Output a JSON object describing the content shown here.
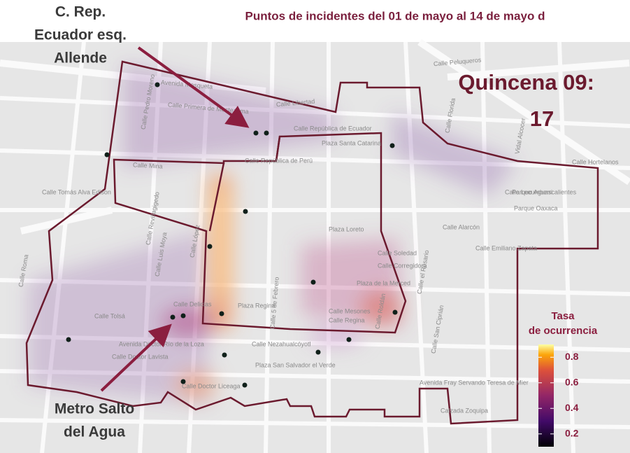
{
  "map": {
    "title": "Puntos de incidentes del 01 de mayo al 14 de mayo d",
    "period_label": "Quincena 09:",
    "period_value": "17",
    "annotations": [
      {
        "lines": [
          "C. Rep.",
          "Ecuador esq.",
          "Allende"
        ]
      },
      {
        "lines": [
          "Metro Salto",
          "del Agua"
        ]
      }
    ],
    "legend": {
      "title": [
        "Tasa",
        "de ocurrencia"
      ],
      "range": [
        0.1,
        0.9
      ],
      "ticks": [
        0.2,
        0.4,
        0.6,
        0.8
      ]
    },
    "streets": [
      "Avenida Mosqueta",
      "Calle Primera de Moctezuma",
      "Calle Pedro Moreno",
      "Calle Mina",
      "Calle República de Ecuador",
      "Calle República de Perú",
      "Plaza Santa Catarina",
      "Calle Libertad",
      "Calle Peluqueros",
      "Calle Florida",
      "Calle Hortelanos",
      "Calle Lecumberri",
      "Parque Aguascalientes",
      "Parque Oaxaca",
      "Calle Alarcón",
      "Calle Emiliano Zapata",
      "Calle Soledad",
      "Calle Corregidora",
      "Plaza de la Merced",
      "Plaza Loreto",
      "Calle Mesones",
      "Calle Regina",
      "Plaza Regina",
      "Calle Delicias",
      "Calle López",
      "Calle Luis Moya",
      "Calle Revillagigedo",
      "Calle Tolsá",
      "Avenida Doctor Río de la Loza",
      "Calle Doctor Lavista",
      "Calle Nezahualcóyotl",
      "Plaza San Salvador el Verde",
      "Avenida Fray Servando Teresa de Mier",
      "Calle 5 de Febrero",
      "Calle Roldán",
      "Calle el Rosario",
      "Calle San Ciprián",
      "Vidal Alcocer",
      "Calle Tomás Alva Edison",
      "Calle Roma",
      "Calzada Zoquipa",
      "Calle Doctor Liceaga"
    ]
  }
}
